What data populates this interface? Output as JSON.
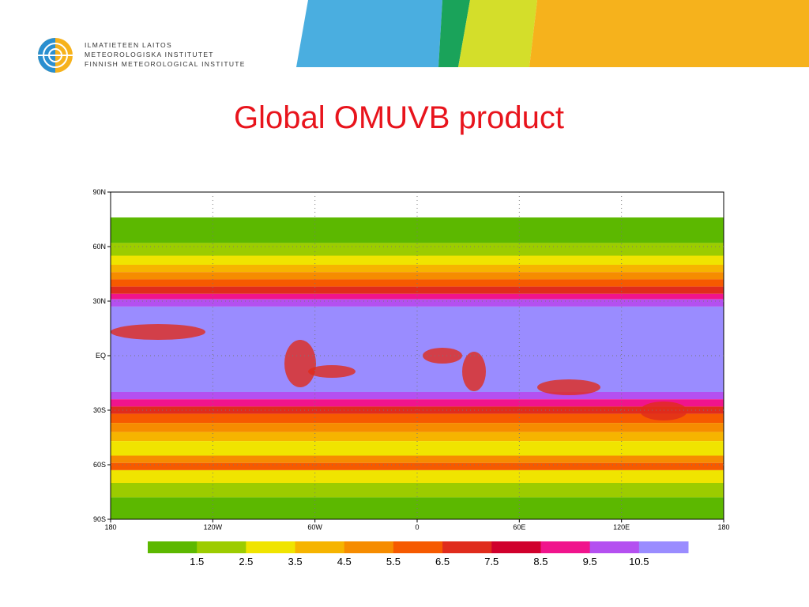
{
  "header": {
    "org_lines": [
      "ILMATIETEEN LAITOS",
      "METEOROLOGISKA INSTITUTET",
      "FINNISH METEOROLOGICAL INSTITUTE"
    ]
  },
  "title": "Global OMUVB product",
  "map": {
    "lat_labels": [
      "90N",
      "60N",
      "30N",
      "EQ",
      "30S",
      "60S",
      "90S"
    ],
    "lon_labels": [
      "180",
      "120W",
      "60W",
      "0",
      "60E",
      "120E",
      "180"
    ]
  },
  "colorbar": {
    "colors": [
      "#5cb800",
      "#9ccc00",
      "#f0e400",
      "#f6b400",
      "#f68c00",
      "#f65a00",
      "#e02c1c",
      "#d0002c",
      "#f0148c",
      "#b450f0",
      "#9a8cff"
    ],
    "labels": [
      1.5,
      2.5,
      3.5,
      4.5,
      5.5,
      6.5,
      7.5,
      8.5,
      9.5,
      10.5
    ]
  }
}
